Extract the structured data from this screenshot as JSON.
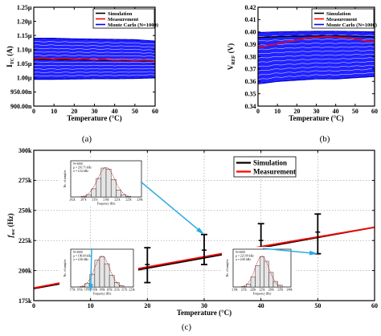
{
  "panel_labels": [
    "(a)",
    "(b)",
    "(c)"
  ],
  "chart_data": [
    {
      "id": "a",
      "type": "line",
      "xlabel": "Temperature (°C)",
      "ylabel_main": "I",
      "ylabel_sub": "TC",
      "ylabel_unit": " (A)",
      "xlim": [
        0,
        60
      ],
      "ylim": [
        900,
        1250
      ],
      "xticks": [
        0,
        10,
        20,
        30,
        40,
        50,
        60
      ],
      "yticks": [
        900,
        950,
        1000,
        1050,
        1100,
        1150,
        1200,
        1250
      ],
      "ytick_labels": [
        "900.00n",
        "950.00n",
        "1.00µ",
        "1.05µ",
        "1.10µ",
        "1.15µ",
        "1.20µ",
        "1.25µ"
      ],
      "legend": [
        "Simulation",
        "Measurement",
        "Monte Carlo (N=1000)"
      ],
      "colors": {
        "simulation": "#000000",
        "measurement": "#ff0000",
        "monte_carlo": "#0000ff"
      },
      "series": [
        {
          "name": "Simulation",
          "x": [
            0,
            10,
            20,
            30,
            40,
            50,
            60
          ],
          "y": [
            1066,
            1065,
            1064,
            1063,
            1062,
            1061,
            1060
          ]
        },
        {
          "name": "Measurement",
          "x": [
            0,
            5,
            10,
            15,
            20,
            25,
            30,
            35,
            40,
            45,
            50,
            55,
            60
          ],
          "y": [
            1068,
            1070,
            1066,
            1069,
            1065,
            1067,
            1064,
            1066,
            1062,
            1064,
            1061,
            1063,
            1060
          ]
        }
      ],
      "monte_carlo": {
        "runs": 1000,
        "upper": [
          1140,
          1140,
          1138,
          1137,
          1136,
          1135,
          1130
        ],
        "lower": [
          995,
          995,
          996,
          997,
          997,
          998,
          1000
        ]
      }
    },
    {
      "id": "b",
      "type": "line",
      "xlabel": "Temperature (°C)",
      "ylabel_main": "V",
      "ylabel_sub": "REF",
      "ylabel_unit": " (V)",
      "xlim": [
        0,
        60
      ],
      "ylim": [
        0.34,
        0.42
      ],
      "xticks": [
        0,
        10,
        20,
        30,
        40,
        50,
        60
      ],
      "yticks": [
        0.34,
        0.35,
        0.36,
        0.37,
        0.38,
        0.39,
        0.4,
        0.41,
        0.42
      ],
      "ytick_labels": [
        "0.34",
        "0.35",
        "0.36",
        "0.37",
        "0.38",
        "0.39",
        "0.40",
        "0.41",
        "0.42"
      ],
      "legend": [
        "Simulation",
        "Measurement",
        "Monte Carlo (N=1000)"
      ],
      "colors": {
        "simulation": "#000000",
        "measurement": "#ff0000",
        "monte_carlo": "#0000ff"
      },
      "series": [
        {
          "name": "Simulation",
          "x": [
            0,
            10,
            20,
            30,
            40,
            50,
            60
          ],
          "y": [
            0.3955,
            0.3962,
            0.3966,
            0.3968,
            0.3968,
            0.3965,
            0.396
          ]
        },
        {
          "name": "Measurement",
          "x": [
            0,
            5,
            10,
            15,
            20,
            25,
            30,
            35,
            40,
            45,
            50,
            55,
            60
          ],
          "y": [
            0.3875,
            0.389,
            0.3905,
            0.392,
            0.3935,
            0.395,
            0.3958,
            0.3962,
            0.396,
            0.3955,
            0.3945,
            0.393,
            0.392
          ]
        }
      ],
      "monte_carlo": {
        "runs": 1000,
        "upper": [
          0.3995,
          0.4,
          0.4003,
          0.4005,
          0.4005,
          0.4003,
          0.4
        ],
        "lower": [
          0.358,
          0.36,
          0.361,
          0.362,
          0.362,
          0.363,
          0.364
        ]
      }
    },
    {
      "id": "c",
      "type": "line",
      "xlabel": "Temperature (°C)",
      "ylabel_main": "f",
      "ylabel_sub": "osc",
      "ylabel_unit": " (Hz)",
      "xlim": [
        0,
        60
      ],
      "ylim": [
        175,
        300
      ],
      "xticks": [
        0,
        10,
        20,
        30,
        40,
        50,
        60
      ],
      "yticks": [
        175,
        200,
        225,
        250,
        275,
        300
      ],
      "ytick_labels": [
        "175k",
        "200k",
        "225k",
        "250k",
        "275k",
        "300k"
      ],
      "legend": [
        "Simulation",
        "Measurement"
      ],
      "colors": {
        "simulation": "#000000",
        "measurement": "#ff0000",
        "arrow": "#29abe2"
      },
      "series": [
        {
          "name": "Simulation",
          "x": [
            0,
            60
          ],
          "y": [
            185,
            236
          ]
        },
        {
          "name": "Measurement",
          "x": [
            0,
            10,
            20,
            30,
            40,
            50,
            60
          ],
          "y": [
            185.5,
            194.5,
            203,
            211.5,
            220,
            228,
            236
          ]
        }
      ],
      "error_bars": [
        {
          "x": 10,
          "y": 195,
          "low": 182,
          "high": 208
        },
        {
          "x": 20,
          "y": 205,
          "low": 190,
          "high": 219
        },
        {
          "x": 30,
          "y": 217,
          "low": 205,
          "high": 230
        },
        {
          "x": 40,
          "y": 225,
          "low": 211,
          "high": 239
        },
        {
          "x": 50,
          "y": 232,
          "low": 214,
          "high": 247
        }
      ]
    }
  ],
  "insets": [
    {
      "id": "inset-30",
      "target": {
        "x": 30,
        "y": 230
      },
      "stats": [
        "N=1000",
        "µ = 216.71 kHz",
        "σ = 4.32 kHz"
      ],
      "xlabel": "Frequency (Hz)",
      "ylabel": "No. of samples",
      "xticks": [
        "202k",
        "207k",
        "211k",
        "216k",
        "221k",
        "225k",
        "230k"
      ],
      "bars": [
        5,
        20,
        70,
        160,
        250,
        240,
        150,
        60,
        20,
        5
      ]
    },
    {
      "id": "inset-10",
      "target": {
        "x": 10,
        "y": 182
      },
      "stats": [
        "N=1000",
        "µ = 196.69 kHz",
        "σ = 4.36 kHz"
      ],
      "xlabel": "Frequency (Hz)",
      "ylabel": "No. of samples",
      "xticks": [
        "175k",
        "181k",
        "187k",
        "193k",
        "199k",
        "205k",
        "211k",
        "217k",
        "223k"
      ],
      "bars": [
        5,
        30,
        110,
        230,
        260,
        200,
        100,
        40,
        10
      ]
    },
    {
      "id": "inset-50",
      "target": {
        "x": 50,
        "y": 214
      },
      "stats": [
        "N=1000",
        "µ = 221.99 kHz",
        "σ = 4.60 kHz"
      ],
      "xlabel": "Frequency (Hz)",
      "ylabel": "No. of samples",
      "xticks": [
        "210k",
        "215k",
        "220k",
        "225k",
        "230k",
        "235k",
        "240k"
      ],
      "bars": [
        5,
        25,
        90,
        190,
        270,
        230,
        130,
        50,
        15
      ]
    }
  ]
}
